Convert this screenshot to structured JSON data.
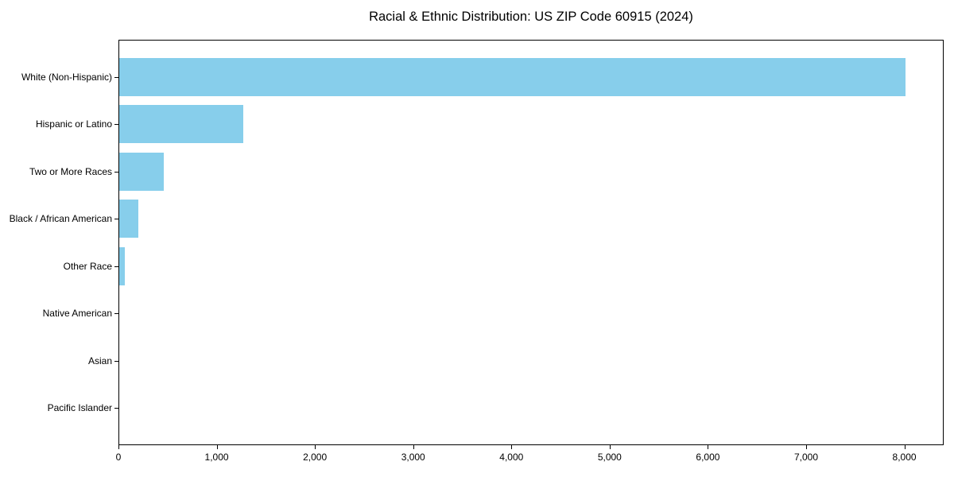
{
  "title": "Racial & Ethnic Distribution: US ZIP Code 60915 (2024)",
  "colors": {
    "bar": "#87CEEB",
    "axis": "#000000",
    "background": "#FFFFFF",
    "text": "#000000"
  },
  "chart_data": {
    "type": "bar",
    "orientation": "horizontal",
    "title": "Racial & Ethnic Distribution: US ZIP Code 60915 (2024)",
    "categories": [
      "White (Non-Hispanic)",
      "Hispanic or Latino",
      "Two or More Races",
      "Black / African American",
      "Other Race",
      "Native American",
      "Asian",
      "Pacific Islander"
    ],
    "values": [
      8000,
      1265,
      450,
      195,
      57,
      0,
      0,
      0
    ],
    "xlabel": "",
    "ylabel": "",
    "xlim": [
      0,
      8400
    ],
    "xticks": [
      0,
      1000,
      2000,
      3000,
      4000,
      5000,
      6000,
      7000,
      8000
    ],
    "xtick_labels": [
      "0",
      "1,000",
      "2,000",
      "3,000",
      "4,000",
      "5,000",
      "6,000",
      "7,000",
      "8,000"
    ],
    "grid": false,
    "legend": null,
    "bar_color": "#87CEEB"
  }
}
